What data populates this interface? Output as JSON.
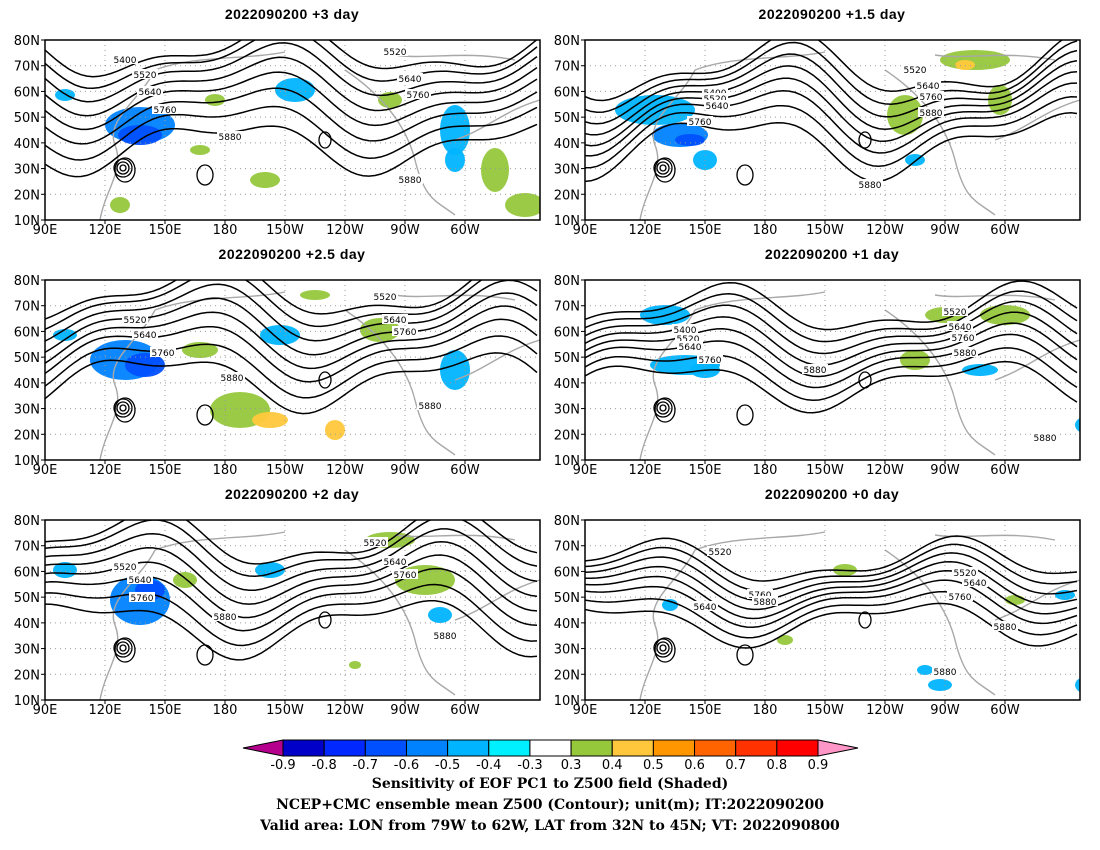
{
  "panels": [
    {
      "title": "2022090200  +3 day",
      "labels": [
        {
          "text": "5400"
        },
        {
          "text": "5520"
        },
        {
          "text": "5640"
        },
        {
          "text": "5760"
        },
        {
          "text": "5880"
        },
        {
          "text": "5520"
        },
        {
          "text": "5640"
        },
        {
          "text": "5760"
        },
        {
          "text": "5880"
        }
      ]
    },
    {
      "title": "2022090200  +1.5 day",
      "labels": [
        {
          "text": "5400"
        },
        {
          "text": "5520"
        },
        {
          "text": "5640"
        },
        {
          "text": "5760"
        },
        {
          "text": "5520"
        },
        {
          "text": "5640"
        },
        {
          "text": "5760"
        },
        {
          "text": "5880"
        },
        {
          "text": "5880"
        }
      ]
    },
    {
      "title": "2022090200  +2.5 day",
      "labels": [
        {
          "text": "5520"
        },
        {
          "text": "5640"
        },
        {
          "text": "5760"
        },
        {
          "text": "5880"
        },
        {
          "text": "5520"
        },
        {
          "text": "5640"
        },
        {
          "text": "5760"
        },
        {
          "text": "5880"
        }
      ]
    },
    {
      "title": "2022090200  +1 day",
      "labels": [
        {
          "text": "5400"
        },
        {
          "text": "5520"
        },
        {
          "text": "5640"
        },
        {
          "text": "5760"
        },
        {
          "text": "5880"
        },
        {
          "text": "5520"
        },
        {
          "text": "5640"
        },
        {
          "text": "5760"
        },
        {
          "text": "5880"
        },
        {
          "text": "5880"
        }
      ]
    },
    {
      "title": "2022090200  +2 day",
      "labels": [
        {
          "text": "5520"
        },
        {
          "text": "5640"
        },
        {
          "text": "5760"
        },
        {
          "text": "5880"
        },
        {
          "text": "5520"
        },
        {
          "text": "5640"
        },
        {
          "text": "5760"
        },
        {
          "text": "5880"
        }
      ]
    },
    {
      "title": "2022090200  +0 day",
      "labels": [
        {
          "text": "5520"
        },
        {
          "text": "5640"
        },
        {
          "text": "5760"
        },
        {
          "text": "5880"
        },
        {
          "text": "5520"
        },
        {
          "text": "5640"
        },
        {
          "text": "5760"
        },
        {
          "text": "5880"
        },
        {
          "text": "5880"
        }
      ]
    }
  ],
  "axes": {
    "lat_ticks": [
      "10N",
      "20N",
      "30N",
      "40N",
      "50N",
      "60N",
      "70N",
      "80N"
    ],
    "lon_ticks": [
      "90E",
      "120E",
      "150E",
      "180",
      "150W",
      "120W",
      "90W",
      "60W"
    ]
  },
  "colorbar": {
    "tick_labels": [
      "-0.9",
      "-0.8",
      "-0.7",
      "-0.6",
      "-0.5",
      "-0.4",
      "-0.3",
      "0.3",
      "0.4",
      "0.5",
      "0.6",
      "0.7",
      "0.8",
      "0.9"
    ],
    "colors": [
      "#b4008c",
      "#0000c8",
      "#0028ff",
      "#0050ff",
      "#0082ff",
      "#00b4ff",
      "#00f0ff",
      "#ffffff",
      "#96c83c",
      "#ffc83c",
      "#ff9600",
      "#ff6400",
      "#ff3200",
      "#ff0000",
      "#ff96c8"
    ]
  },
  "footer": {
    "line1": "Sensitivity of EOF PC1 to Z500 field (Shaded)",
    "line2": "NCEP+CMC ensemble mean Z500 (Contour); unit(m); IT:2022090200",
    "line3": "Valid area: LON from 79W to 62W, LAT from 32N to 45N; VT: 2022090800"
  }
}
